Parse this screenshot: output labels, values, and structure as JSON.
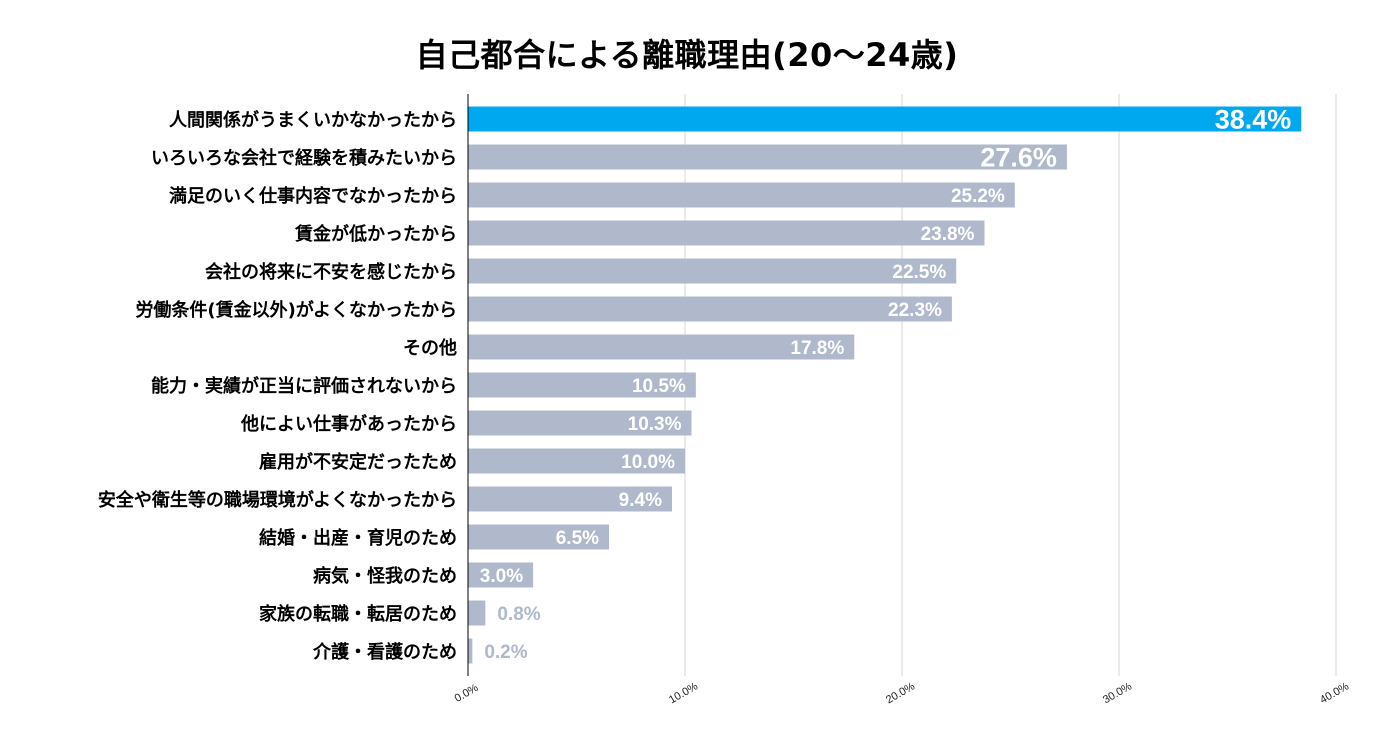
{
  "chart_data": {
    "type": "bar",
    "orientation": "horizontal",
    "title": "自己都合による離職理由(20～24歳)",
    "categories": [
      "人間関係がうまくいかなかったから",
      "いろいろな会社で経験を積みたいから",
      "満足のいく仕事内容でなかったから",
      "賃金が低かったから",
      "会社の将来に不安を感じたから",
      "労働条件(賃金以外)がよくなかったから",
      "その他",
      "能力・実績が正当に評価されないから",
      "他によい仕事があったから",
      "雇用が不安定だったため",
      "安全や衛生等の職場環境がよくなかったから",
      "結婚・出産・育児のため",
      "病気・怪我のため",
      "家族の転職・転居のため",
      "介護・看護のため"
    ],
    "values": [
      38.4,
      27.6,
      25.2,
      23.8,
      22.5,
      22.3,
      17.8,
      10.5,
      10.3,
      10.0,
      9.4,
      6.5,
      3.0,
      0.8,
      0.2
    ],
    "value_labels": [
      "38.4%",
      "27.6%",
      "25.2%",
      "23.8%",
      "22.5%",
      "22.3%",
      "17.8%",
      "10.5%",
      "10.3%",
      "10.0%",
      "9.4%",
      "6.5%",
      "3.0%",
      "0.8%",
      "0.2%"
    ],
    "xlim": [
      0,
      40
    ],
    "x_ticks": [
      0,
      10,
      20,
      30,
      40
    ],
    "x_tick_labels": [
      "0.0%",
      "10.0%",
      "20.0%",
      "30.0%",
      "40.0%"
    ],
    "grid": "vertical",
    "legend": "none",
    "colors": {
      "highlight": "#00a8f0",
      "bar": "#b0b9cb",
      "label_inside": "#ffffff",
      "label_outside": "#b0b9cb",
      "grid": "#d6d6d6",
      "axis": "#000000"
    }
  }
}
